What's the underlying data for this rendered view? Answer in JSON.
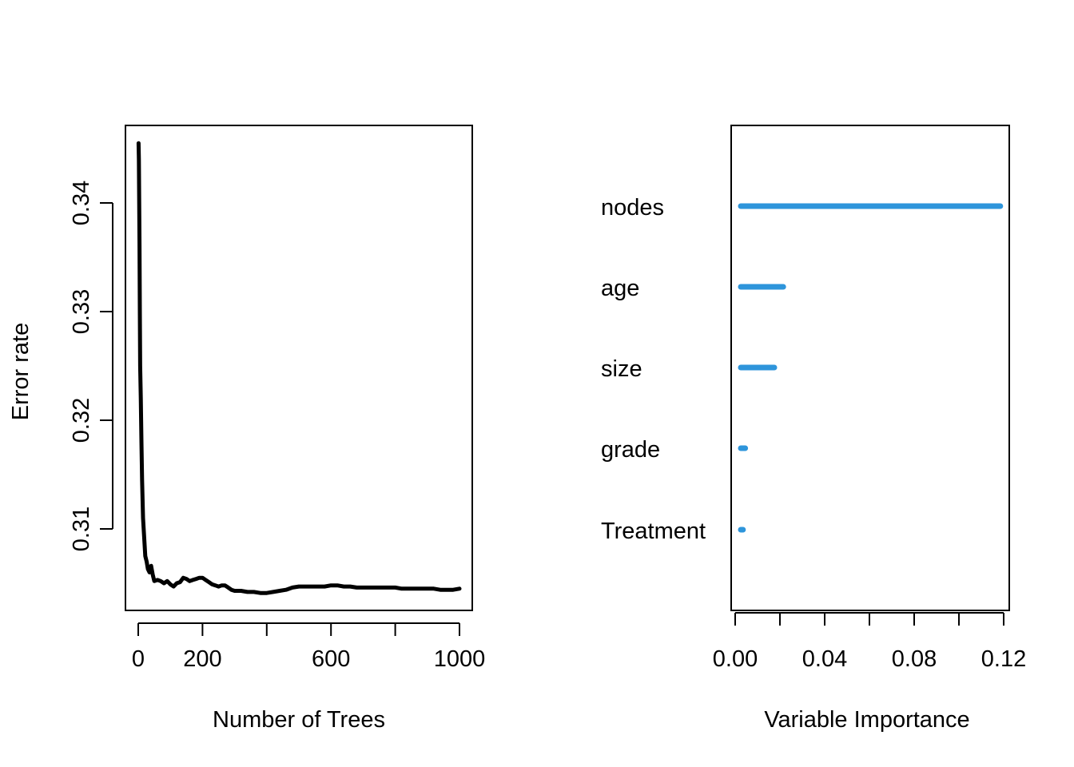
{
  "chart_data": [
    {
      "type": "line",
      "title": "",
      "xlabel": "Number of Trees",
      "ylabel": "Error rate",
      "xlim": [
        0,
        1000
      ],
      "ylim": [
        0.304,
        0.346
      ],
      "x_ticks": [
        0,
        200,
        600,
        1000
      ],
      "x_tick_marks": [
        0,
        200,
        400,
        600,
        800,
        1000
      ],
      "y_ticks": [
        0.31,
        0.32,
        0.33,
        0.34
      ],
      "y_tick_labels": [
        "0.31",
        "0.32",
        "0.33",
        "0.34"
      ],
      "grid": false,
      "line_color": "#000000",
      "series": [
        {
          "x": [
            1,
            2,
            3,
            4,
            5,
            6,
            7,
            8,
            10,
            12,
            15,
            18,
            22,
            26,
            30,
            35,
            40,
            45,
            50,
            60,
            70,
            80,
            90,
            100,
            110,
            120,
            130,
            140,
            150,
            160,
            170,
            180,
            190,
            200,
            210,
            220,
            230,
            240,
            250,
            260,
            270,
            280,
            290,
            300,
            320,
            340,
            360,
            380,
            400,
            420,
            440,
            460,
            480,
            500,
            520,
            540,
            560,
            580,
            600,
            620,
            640,
            660,
            680,
            700,
            720,
            740,
            760,
            780,
            800,
            820,
            840,
            860,
            880,
            900,
            920,
            940,
            960,
            980,
            1000
          ],
          "y": [
            0.3455,
            0.344,
            0.34,
            0.336,
            0.33,
            0.325,
            0.3235,
            0.322,
            0.318,
            0.3145,
            0.311,
            0.3095,
            0.3075,
            0.307,
            0.3063,
            0.306,
            0.3066,
            0.3058,
            0.3052,
            0.3053,
            0.3052,
            0.305,
            0.3052,
            0.3049,
            0.3047,
            0.305,
            0.3051,
            0.3055,
            0.3054,
            0.3052,
            0.3053,
            0.3054,
            0.3055,
            0.3055,
            0.3053,
            0.3051,
            0.3049,
            0.3048,
            0.3047,
            0.3048,
            0.3048,
            0.3046,
            0.3044,
            0.3043,
            0.3043,
            0.3042,
            0.3042,
            0.3041,
            0.3041,
            0.3042,
            0.3043,
            0.3044,
            0.3046,
            0.3047,
            0.3047,
            0.3047,
            0.3047,
            0.3047,
            0.3048,
            0.3048,
            0.3047,
            0.3047,
            0.3046,
            0.3046,
            0.3046,
            0.3046,
            0.3046,
            0.3046,
            0.3046,
            0.3045,
            0.3045,
            0.3045,
            0.3045,
            0.3045,
            0.3045,
            0.3044,
            0.3044,
            0.3044,
            0.3045
          ]
        }
      ]
    },
    {
      "type": "dotchart",
      "title": "",
      "xlabel": "Variable Importance",
      "ylabel": "",
      "xlim": [
        0.0,
        0.12
      ],
      "x_ticks": [
        0.0,
        0.04,
        0.08,
        0.12
      ],
      "x_tick_labels": [
        "0.00",
        "0.04",
        "0.08",
        "0.12"
      ],
      "x_tick_marks": [
        0.0,
        0.02,
        0.04,
        0.06,
        0.08,
        0.1,
        0.12
      ],
      "grid": false,
      "bar_color": "#2e95db",
      "categories": [
        "nodes",
        "age",
        "size",
        "grade",
        "Treatment"
      ],
      "values": [
        0.1185,
        0.0215,
        0.0175,
        0.0045,
        0.0035
      ],
      "base": 0.0025
    }
  ]
}
